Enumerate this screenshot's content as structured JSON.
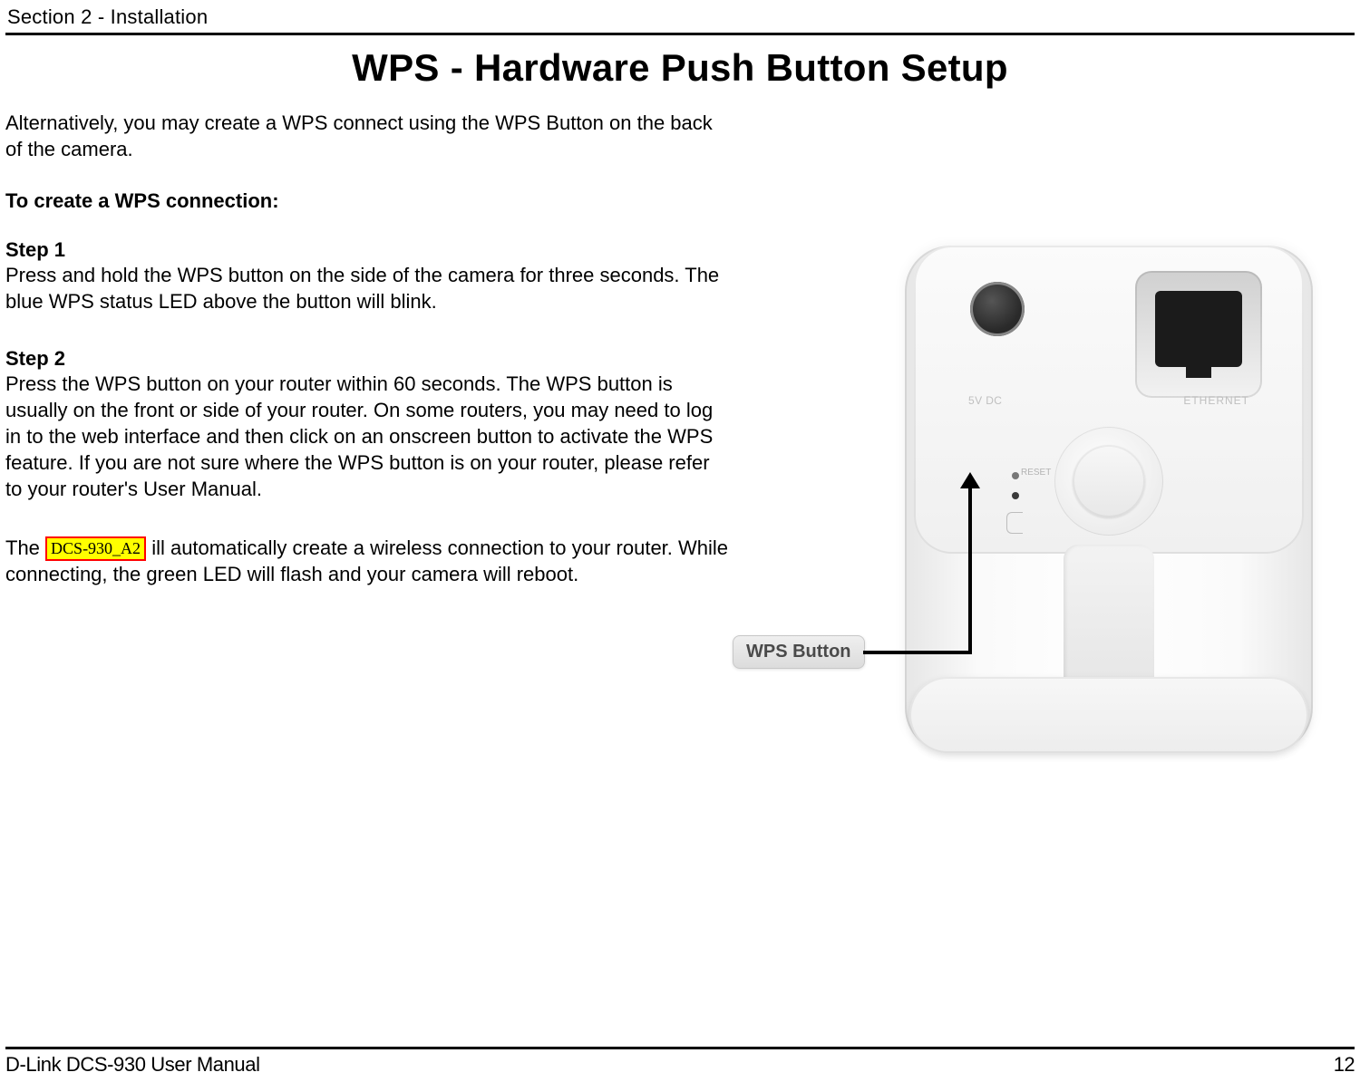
{
  "header": {
    "section": "Section 2 - Installation"
  },
  "title": "WPS - Hardware Push Button Setup",
  "intro": "Alternatively, you may create a WPS connect using the WPS Button on the back of the camera.",
  "subhead": "To create a WPS connection:",
  "step1": {
    "heading": "Step 1",
    "body": "Press and hold the WPS button on the side of the camera for three seconds. The blue WPS  status LED above the button will blink."
  },
  "step2": {
    "heading": "Step 2",
    "body": "Press the WPS button on your router within 60 seconds. The WPS button is usually on the front or side of your router. On some routers, you may need to log in to the web interface and then click on an onscreen button to activate the WPS feature. If you are not sure where the WPS button is on your router, please refer to your router's User Manual."
  },
  "closing": {
    "prefix": "The",
    "highlight": "DCS-930_A2",
    "middle": "ill automatically create a wireless connection to your router. While connecting, the green LED will flash and your camera will reboot."
  },
  "figure": {
    "eth_label": "ETHERNET",
    "dc_label": "5V DC",
    "reset_label": "RESET",
    "callout": "WPS Button",
    "highlight_bg": "#ffff00",
    "highlight_border": "#ff0000"
  },
  "footer": {
    "left": "D-Link DCS-930 User Manual",
    "page": "12"
  }
}
